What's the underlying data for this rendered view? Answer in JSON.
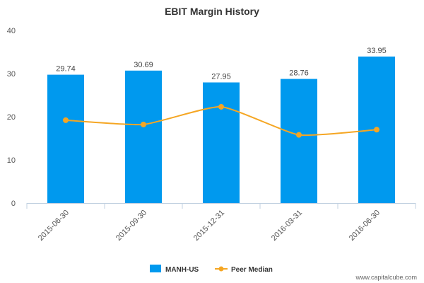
{
  "chart_data": {
    "type": "bar",
    "title": "EBIT Margin History",
    "xlabel": "",
    "ylabel": "",
    "categories": [
      "2015-06-30",
      "2015-09-30",
      "2015-12-31",
      "2016-03-31",
      "2016-06-30"
    ],
    "ylim": [
      0,
      40
    ],
    "yticks": [
      0,
      10,
      20,
      30,
      40
    ],
    "grid": false,
    "legend_position": "bottom-center",
    "series": [
      {
        "name": "MANH-US",
        "type": "bar",
        "color": "#0099ee",
        "values": [
          29.74,
          30.69,
          27.95,
          28.76,
          33.95
        ],
        "labels": [
          "29.74",
          "30.69",
          "27.95",
          "28.76",
          "33.95"
        ]
      },
      {
        "name": "Peer Median",
        "type": "line",
        "smooth": true,
        "color": "#f5a623",
        "values": [
          19.2,
          18.2,
          22.3,
          15.8,
          17.0
        ]
      }
    ]
  },
  "credit": "www.capitalcube.com"
}
